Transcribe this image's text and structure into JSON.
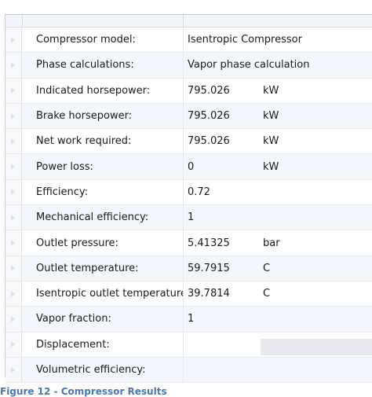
{
  "properties": [
    {
      "label": "Compressor model:",
      "value": "Isentropic Compressor",
      "unit": ""
    },
    {
      "label": "Phase calculations:",
      "value": "Vapor phase calculation",
      "unit": ""
    },
    {
      "label": "Indicated horsepower:",
      "value": "795.026",
      "unit": "kW"
    },
    {
      "label": "Brake horsepower:",
      "value": "795.026",
      "unit": "kW"
    },
    {
      "label": "Net work required:",
      "value": "795.026",
      "unit": "kW"
    },
    {
      "label": "Power loss:",
      "value": "0",
      "unit": "kW"
    },
    {
      "label": "Efficiency:",
      "value": "0.72",
      "unit": ""
    },
    {
      "label": "Mechanical efficiency:",
      "value": "1",
      "unit": ""
    },
    {
      "label": "Outlet pressure:",
      "value": "5.41325",
      "unit": "bar"
    },
    {
      "label": "Outlet temperature:",
      "value": "59.7915",
      "unit": "C"
    },
    {
      "label": "Isentropic outlet temperature",
      "value": "39.7814",
      "unit": "C"
    },
    {
      "label": "Vapor fraction:",
      "value": "1",
      "unit": ""
    },
    {
      "label": "Displacement:",
      "value": "",
      "unit": ""
    },
    {
      "label": "Volumetric efficiency:",
      "value": "",
      "unit": ""
    }
  ],
  "caption": "Figure 12 - Compressor Results"
}
